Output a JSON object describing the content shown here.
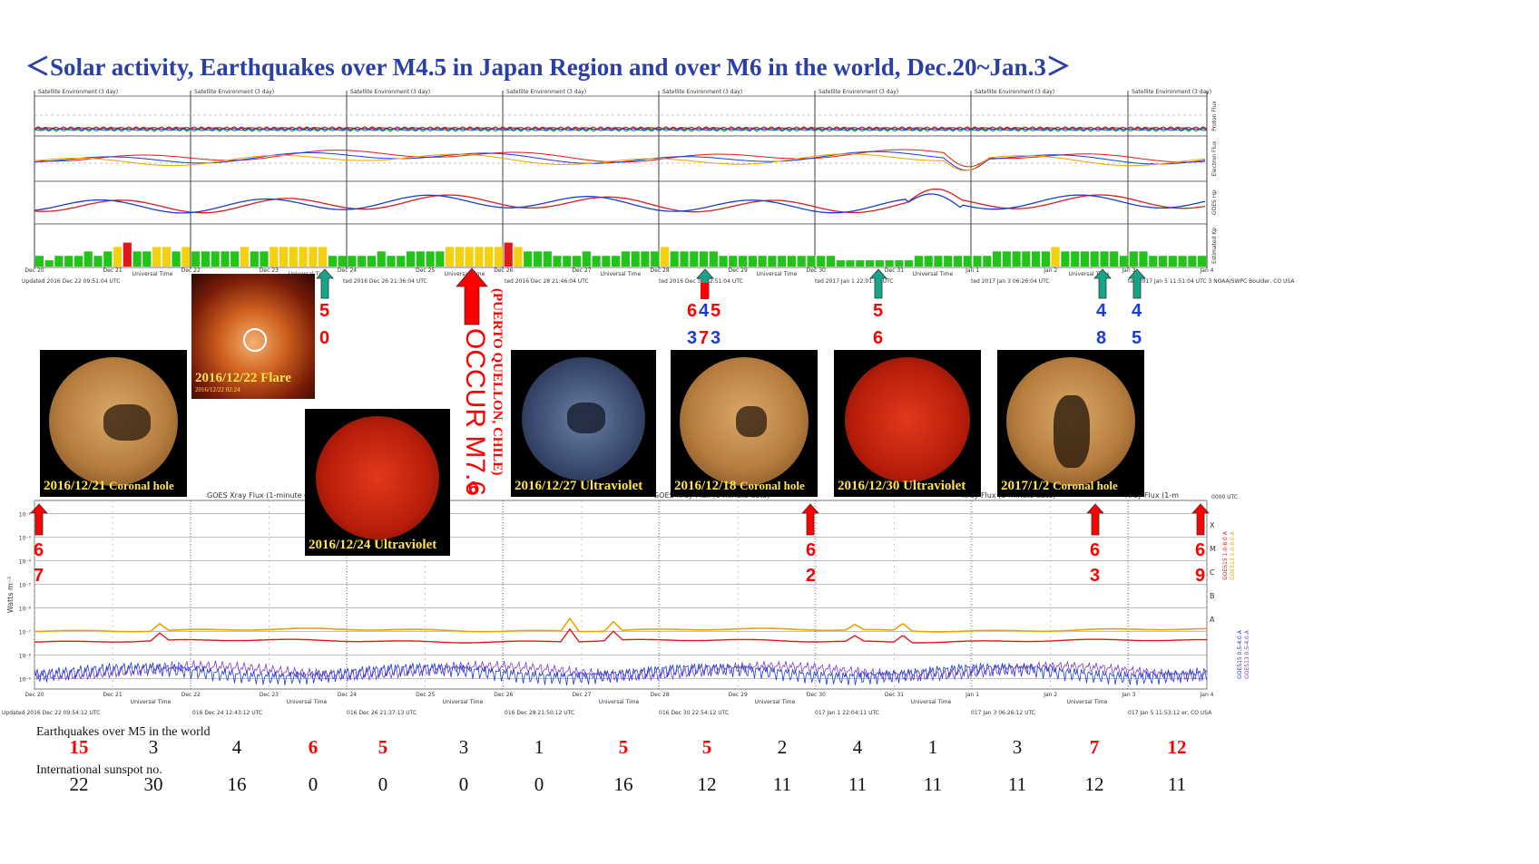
{
  "title": "＜Solar activity, Earthquakes over M4.5 in Japan Region and over M6 in the world, Dec.20~Jan.3＞",
  "colors": {
    "title": "#2b3fa8",
    "red": "#ff0000",
    "blue": "#1a3bd8",
    "green": "#17a589",
    "bar_green": "#22c41a",
    "bar_yellow": "#f4d012",
    "bar_red": "#e0191c"
  },
  "satellite_env": {
    "panel_title": "Satellite Environment (3 day)",
    "axis_labels": [
      "Proton Flux",
      "Electron Flux",
      "GOES Hp",
      "Estimated Kp"
    ],
    "day_labels": [
      "Dec 20",
      "Dec 21",
      "Dec 22",
      "Dec 23",
      "Dec 24",
      "Dec 25",
      "Dec 26",
      "Dec 27",
      "Dec 28",
      "Dec 29",
      "Dec 30",
      "Dec 31",
      "Jan 1",
      "Jan 2",
      "Jan 3",
      "Jan 4"
    ],
    "xlabel": "Universal Time",
    "updated": [
      "Updated 2016 Dec 22 09:51:04 UTC",
      "ted 2016 Dec 24 12:40:04 UTC",
      "ted 2016 Dec 26 21:36:04 UTC",
      "ted 2016 Dec 28 21:46:04 UTC",
      "ted 2016 Dec 30 22:51:04 UTC",
      "ted 2017 Jan 1 22:01:04 UTC",
      "ted 2017 Jan 3 06:26:04 UTC",
      "ted 2017 Jan 5 11:51:04 UTC 3 NOAA/SWPC Boulder, CO USA"
    ]
  },
  "xray": {
    "panel_title": "GOES Xray Flux (1-minute data)",
    "ylabel": "Watts m⁻²",
    "right_labels": [
      "GOES15 1.0-8.0 A",
      "GOES13 1.0-8.0 A",
      "GOES15 0.5-4.0 A",
      "GOES13 0.5-4.0 A"
    ],
    "tick_labels": [
      "10⁻²",
      "10⁻³",
      "10⁻⁴",
      "10⁻⁵",
      "10⁻⁶",
      "10⁻⁷",
      "10⁻⁸",
      "10⁻⁹"
    ],
    "letters": [
      "X",
      "M",
      "C",
      "B",
      "A"
    ],
    "utc_label": "0000 UTC",
    "updated": [
      "Updated 2016 Dec 22 09:54:12 UTC",
      "016 Dec 24 12:43:12 UTC",
      "016 Dec 26 21:37:13 UTC",
      "016 Dec 28 21:50:12 UTC",
      "016 Dec 30 22:54:12 UTC",
      "017 Jan 1 22:04:11 UTC",
      "017 Jan 3 06:26:12 UTC",
      "017 Jan 5 11:53:12 er, CO USA"
    ]
  },
  "thumbnails": [
    {
      "caption": "2016/12/21",
      "sub": "Coronal hole"
    },
    {
      "caption": "2016/12/22 Flare",
      "sub": "",
      "stamp": "2016/12/22 02:24"
    },
    {
      "caption": "2016/12/24 Ultraviolet",
      "sub": ""
    },
    {
      "caption": "2016/12/27 Ultraviolet",
      "sub": ""
    },
    {
      "caption": "2016/12/18",
      "sub": "Coronal hole"
    },
    {
      "caption": "2016/12/30 Ultraviolet",
      "sub": ""
    },
    {
      "caption": "2017/1/2",
      "sub": "Coronal hole"
    }
  ],
  "m7_note": "OCCUR M7.6",
  "m7_place": "(PUERTO QUELLON, CHILE)",
  "arrow_digits": {
    "green": [
      [
        "5",
        "0"
      ],
      [
        "6",
        "3"
      ],
      [
        "4",
        "7"
      ],
      [
        "5",
        "3"
      ],
      [
        "5",
        "6"
      ],
      [
        "4",
        "8"
      ],
      [
        "4",
        "5"
      ]
    ],
    "red": [
      [
        "6",
        "7"
      ],
      [
        "6",
        "2"
      ],
      [
        "6",
        "3"
      ],
      [
        "6",
        "9"
      ]
    ]
  },
  "rows": {
    "eq_label": "Earthquakes over M5 in the world",
    "sunspot_label": "International sunspot no.",
    "eq_values": [
      "15",
      "3",
      "4",
      "6",
      "5",
      "3",
      "1",
      "5",
      "5",
      "2",
      "4",
      "1",
      "3",
      "7",
      "12"
    ],
    "eq_highlight": [
      true,
      false,
      false,
      true,
      true,
      false,
      false,
      true,
      true,
      false,
      false,
      false,
      false,
      true,
      true
    ],
    "sunspot_values": [
      "22",
      "30",
      "16",
      "0",
      "0",
      "0",
      "0",
      "16",
      "12",
      "11",
      "11",
      "11",
      "11",
      "12",
      "11"
    ]
  },
  "chart_data": [
    {
      "type": "bar",
      "title": "Estimated Kp",
      "ylim": [
        0,
        9
      ],
      "kp_values": [
        2,
        1,
        2,
        2,
        2,
        3,
        2,
        3,
        4,
        5,
        3,
        3,
        4,
        4,
        3,
        4,
        3,
        3,
        3,
        3,
        3,
        4,
        3,
        3,
        4,
        4,
        4,
        4,
        4,
        4,
        2,
        2,
        2,
        2,
        2,
        3,
        2,
        2,
        3,
        3,
        3,
        3,
        4,
        4,
        4,
        4,
        4,
        4,
        5,
        4,
        3,
        3,
        3,
        2,
        2,
        2,
        3,
        2,
        2,
        2,
        3,
        3,
        3,
        3,
        4,
        3,
        3,
        3,
        3,
        3,
        2,
        2,
        2,
        2,
        2,
        2,
        2,
        2,
        2,
        2,
        2,
        2,
        1,
        1,
        1,
        1,
        1,
        1,
        1,
        1,
        2,
        2,
        2,
        2,
        2,
        2,
        2,
        2,
        3,
        3,
        3,
        3,
        3,
        3,
        4,
        3,
        3,
        3,
        3,
        3,
        3,
        2,
        3,
        3,
        2,
        2,
        2,
        2,
        2,
        2
      ],
      "color_rule": "green <4, yellow =4, red >=5"
    },
    {
      "type": "table",
      "title": "Earthquakes over M5 in the world / International sunspot no.",
      "x": [
        "Dec 20",
        "Dec 21",
        "Dec 22",
        "Dec 23",
        "Dec 24",
        "Dec 25",
        "Dec 26",
        "Dec 27",
        "Dec 28",
        "Dec 29",
        "Dec 30",
        "Dec 31",
        "Jan 1",
        "Jan 2",
        "Jan 3"
      ],
      "series": [
        {
          "name": "Earthquakes over M5 in the world",
          "values": [
            15,
            3,
            4,
            6,
            5,
            3,
            1,
            5,
            5,
            2,
            4,
            1,
            3,
            7,
            12
          ]
        },
        {
          "name": "International sunspot no.",
          "values": [
            22,
            30,
            16,
            0,
            0,
            0,
            0,
            16,
            12,
            11,
            11,
            11,
            11,
            12,
            11
          ]
        }
      ]
    }
  ]
}
